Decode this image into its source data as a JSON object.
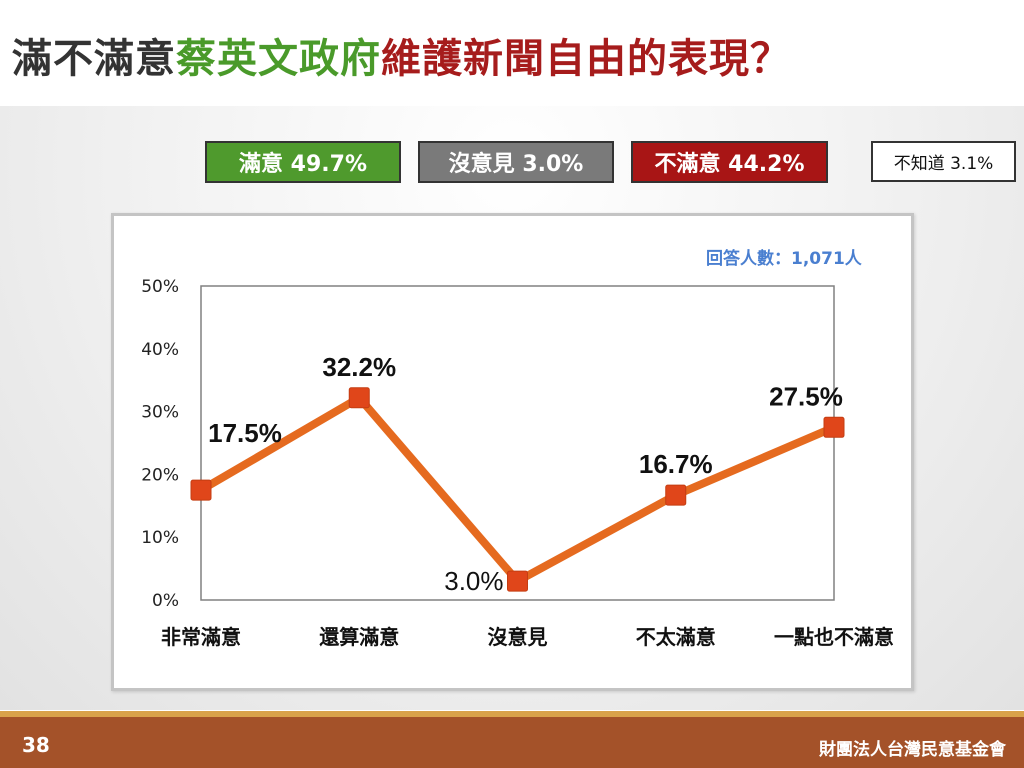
{
  "title": {
    "part1": "滿不滿意",
    "part2": "蔡英文政府",
    "part3": "維護新聞自由的表現？"
  },
  "colors": {
    "title_dark": "#333333",
    "title_green": "#4a9a2a",
    "title_red": "#a61c1c",
    "satisfied_box": "#4f9a2d",
    "no_opinion_box": "#7a7a7a",
    "dissatisfied_box": "#a81515",
    "line": "#e56a1f",
    "marker": "#e0461a"
  },
  "summary": {
    "satisfied": "滿意 49.7%",
    "no_opinion": "沒意見 3.0%",
    "dissatisfied": "不滿意 44.2%",
    "dont_know": "不知道 3.1%"
  },
  "respondents": "回答人數：1,071人",
  "chart_data": {
    "type": "line",
    "categories": [
      "非常滿意",
      "還算滿意",
      "沒意見",
      "不太滿意",
      "一點也不滿意"
    ],
    "values": [
      17.5,
      32.2,
      3.0,
      16.7,
      27.5
    ],
    "data_labels": [
      "17.5%",
      "32.2%",
      "3.0%",
      "16.7%",
      "27.5%"
    ],
    "y_ticks": [
      "0%",
      "10%",
      "20%",
      "30%",
      "40%",
      "50%"
    ],
    "ylim": [
      0,
      50
    ],
    "grid": false,
    "legend": "none"
  },
  "footer": {
    "page_number": "38",
    "organization": "財團法人台灣民意基金會"
  }
}
